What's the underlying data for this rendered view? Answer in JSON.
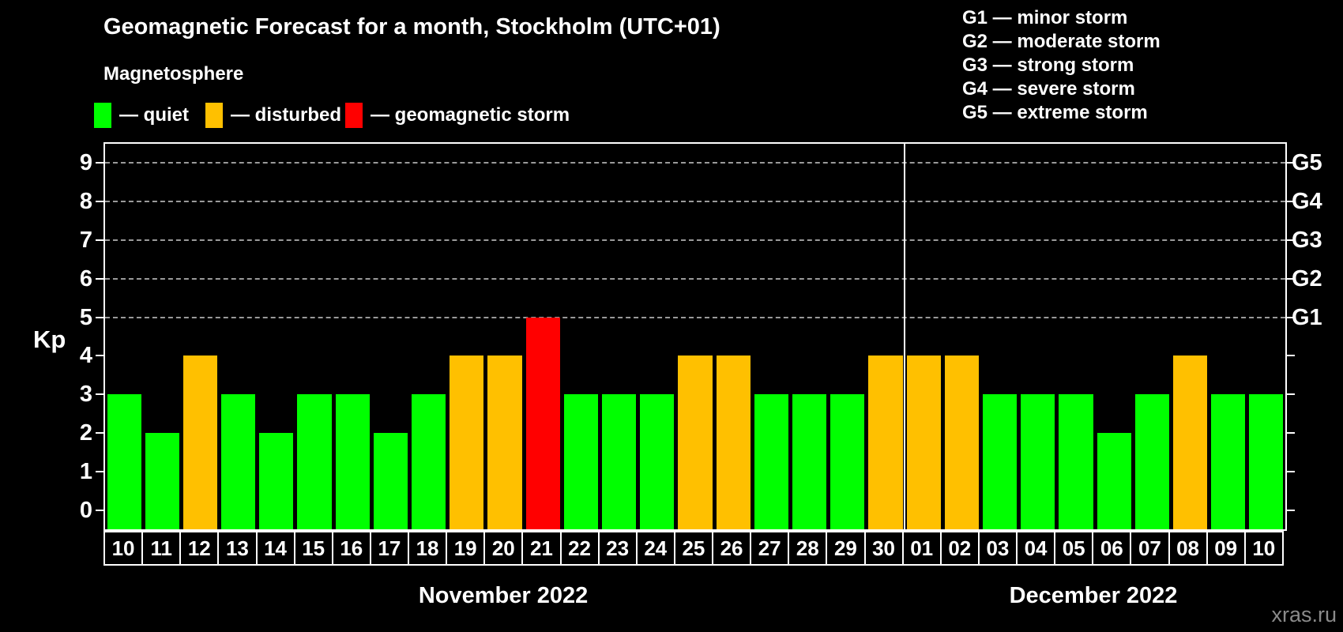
{
  "title": "Geomagnetic Forecast for a month, Stockholm (UTC+01)",
  "subtitle": "Magnetosphere",
  "legend": {
    "items": [
      {
        "key": "quiet",
        "label": "— quiet",
        "color": "#00ff00"
      },
      {
        "key": "disturbed",
        "label": "— disturbed",
        "color": "#ffc000"
      },
      {
        "key": "storm",
        "label": "— geomagnetic storm",
        "color": "#ff0000"
      }
    ]
  },
  "g_scale_legend": [
    "G1 — minor storm",
    "G2 — moderate storm",
    "G3 — strong storm",
    "G4 — severe storm",
    "G5 — extreme storm"
  ],
  "watermark": "xras.ru",
  "chart_data": {
    "type": "bar",
    "title": "Geomagnetic Forecast for a month, Stockholm (UTC+01)",
    "ylabel": "Kp",
    "ylim": [
      -0.5,
      9.5
    ],
    "yticks": [
      0,
      1,
      2,
      3,
      4,
      5,
      6,
      7,
      8,
      9
    ],
    "gridlines_at": [
      5,
      6,
      7,
      8,
      9
    ],
    "grid": "dashed horizontal at storm levels only",
    "right_axis": [
      {
        "value": 5,
        "label": "G1"
      },
      {
        "value": 6,
        "label": "G2"
      },
      {
        "value": 7,
        "label": "G3"
      },
      {
        "value": 8,
        "label": "G4"
      },
      {
        "value": 9,
        "label": "G5"
      }
    ],
    "months": [
      {
        "label": "November 2022",
        "days": 21
      },
      {
        "label": "December 2022",
        "days": 10
      }
    ],
    "categories": [
      "10",
      "11",
      "12",
      "13",
      "14",
      "15",
      "16",
      "17",
      "18",
      "19",
      "20",
      "21",
      "22",
      "23",
      "24",
      "25",
      "26",
      "27",
      "28",
      "29",
      "30",
      "01",
      "02",
      "03",
      "04",
      "05",
      "06",
      "07",
      "08",
      "09",
      "10"
    ],
    "values": [
      3,
      2,
      4,
      3,
      2,
      3,
      3,
      2,
      3,
      4,
      4,
      5,
      3,
      3,
      3,
      4,
      4,
      3,
      3,
      3,
      4,
      4,
      4,
      3,
      3,
      3,
      2,
      3,
      4,
      3,
      3
    ],
    "statuses": [
      "quiet",
      "quiet",
      "disturbed",
      "quiet",
      "quiet",
      "quiet",
      "quiet",
      "quiet",
      "quiet",
      "disturbed",
      "disturbed",
      "storm",
      "quiet",
      "quiet",
      "quiet",
      "disturbed",
      "disturbed",
      "quiet",
      "quiet",
      "quiet",
      "disturbed",
      "disturbed",
      "disturbed",
      "quiet",
      "quiet",
      "quiet",
      "quiet",
      "quiet",
      "disturbed",
      "quiet",
      "quiet"
    ],
    "status_colors": {
      "quiet": "#00ff00",
      "disturbed": "#ffc000",
      "storm": "#ff0000"
    }
  }
}
